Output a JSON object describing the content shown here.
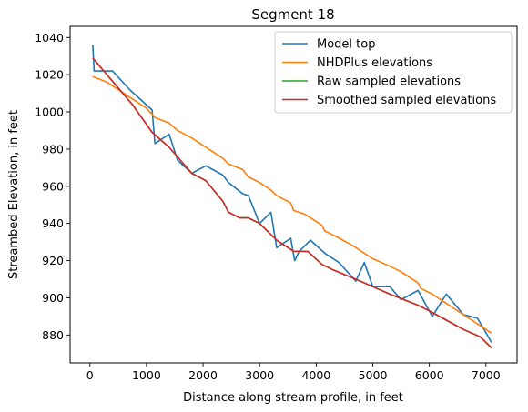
{
  "chart_data": {
    "type": "line",
    "title": "Segment 18",
    "xlabel": "Distance along stream profile, in feet",
    "ylabel": "Streambed Elevation, in feet",
    "xlim": [
      -350,
      7550
    ],
    "ylim": [
      865,
      1046
    ],
    "xticks": [
      0,
      1000,
      2000,
      3000,
      4000,
      5000,
      6000,
      7000
    ],
    "yticks": [
      880,
      900,
      920,
      940,
      960,
      980,
      1000,
      1020,
      1040
    ],
    "grid": false,
    "legend_position": "top-right",
    "series": [
      {
        "name": "Model top",
        "color": "#1f77b4",
        "x": [
          50,
          75,
          400,
          700,
          1100,
          1150,
          1400,
          1550,
          1800,
          2050,
          2350,
          2450,
          2700,
          2800,
          3000,
          3200,
          3300,
          3550,
          3620,
          3700,
          3900,
          4150,
          4400,
          4700,
          4850,
          5000,
          5300,
          5500,
          5800,
          6050,
          6300,
          6600,
          6850,
          7100
        ],
        "y": [
          1036,
          1022,
          1022,
          1012,
          1001,
          983,
          988,
          974,
          967,
          971,
          966,
          962,
          956,
          955,
          940,
          946,
          927,
          932,
          920,
          925,
          931,
          924,
          919,
          909,
          919,
          906,
          906,
          899,
          904,
          890,
          902,
          891,
          889,
          876
        ]
      },
      {
        "name": "NHDPlus elevations",
        "color": "#ff7f0e",
        "x": [
          50,
          300,
          1000,
          1150,
          1400,
          1550,
          1800,
          2050,
          2350,
          2450,
          2700,
          2800,
          3000,
          3200,
          3300,
          3550,
          3600,
          3800,
          3950,
          4100,
          4150,
          4350,
          4650,
          4850,
          5000,
          5300,
          5500,
          5800,
          5850,
          6050,
          6300,
          6600,
          6850,
          7100
        ],
        "y": [
          1019,
          1016,
          1002,
          997,
          994,
          990,
          986,
          981,
          975,
          972,
          969,
          965,
          962,
          958,
          955,
          951,
          947,
          945,
          942,
          939,
          936,
          933,
          928,
          924,
          921,
          917,
          914,
          908,
          905,
          902,
          897,
          891,
          886,
          881
        ]
      },
      {
        "name": "Raw sampled elevations",
        "color": "#2ca02c",
        "x": [
          50,
          300,
          750,
          1100,
          1400,
          1800,
          2050,
          2350,
          2450,
          2650,
          2800,
          3000,
          3300,
          3600,
          3850,
          4100,
          4300,
          4700,
          5000,
          5300,
          5800,
          6000,
          6300,
          6600,
          6900,
          7100
        ],
        "y": [
          1029,
          1020,
          1004,
          989,
          981,
          967,
          963,
          952,
          946,
          943,
          943,
          940,
          931,
          925,
          925,
          918,
          915,
          910,
          906,
          902,
          896,
          893,
          888,
          883,
          879,
          873
        ]
      },
      {
        "name": "Smoothed sampled elevations",
        "color": "#d62728",
        "x": [
          50,
          300,
          750,
          1100,
          1400,
          1800,
          2050,
          2350,
          2450,
          2650,
          2800,
          3000,
          3300,
          3600,
          3850,
          4100,
          4300,
          4700,
          5000,
          5300,
          5800,
          6000,
          6300,
          6600,
          6900,
          7100
        ],
        "y": [
          1029,
          1020,
          1004,
          989,
          981,
          967,
          963,
          952,
          946,
          943,
          943,
          940,
          931,
          925,
          925,
          918,
          915,
          910,
          906,
          902,
          896,
          893,
          888,
          883,
          879,
          873
        ]
      }
    ]
  }
}
